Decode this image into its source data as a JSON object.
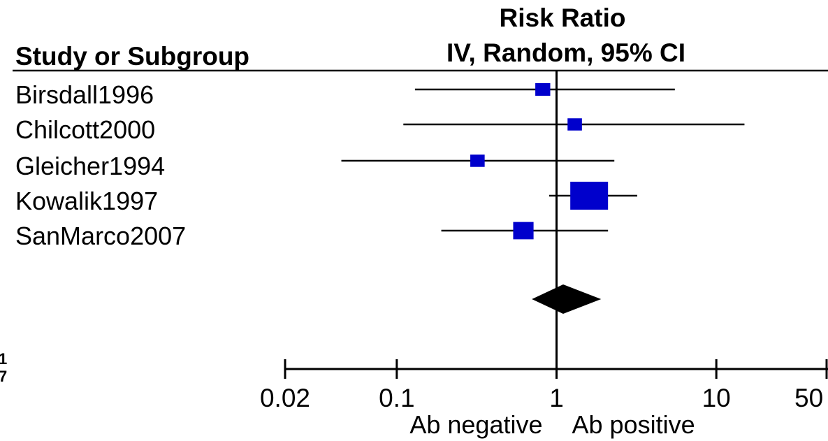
{
  "header": {
    "study_col": "Study or Subgroup",
    "effect_title": "Risk Ratio",
    "effect_subtitle": "IV, Random, 95% CI"
  },
  "left_edge_fragments": [
    "1",
    "7"
  ],
  "chart_data": {
    "type": "forest",
    "scale": "log",
    "xlim": [
      0.02,
      50
    ],
    "x_ticks": [
      0.02,
      0.1,
      1,
      10,
      50
    ],
    "x_tick_labels": [
      "0.02",
      "0.1",
      "1",
      "10",
      "50"
    ],
    "reference_line": 1,
    "direction_labels": {
      "left": "Ab negative",
      "right": "Ab positive"
    },
    "marker_color": "#0000cc",
    "studies": [
      {
        "name": "Birsdall1996",
        "rr": 0.82,
        "lower": 0.13,
        "upper": 5.5,
        "weight": 3
      },
      {
        "name": "Chilcott2000",
        "rr": 1.3,
        "lower": 0.11,
        "upper": 15.0,
        "weight": 2.5
      },
      {
        "name": "Gleicher1994",
        "rr": 0.32,
        "lower": 0.045,
        "upper": 2.3,
        "weight": 2.5
      },
      {
        "name": "Kowalik1997",
        "rr": 1.6,
        "lower": 0.9,
        "upper": 3.2,
        "weight": 60
      },
      {
        "name": "SanMarco2007",
        "rr": 0.62,
        "lower": 0.19,
        "upper": 2.1,
        "weight": 10
      }
    ],
    "pooled": {
      "rr": 1.1,
      "lower": 0.7,
      "upper": 1.9
    }
  }
}
